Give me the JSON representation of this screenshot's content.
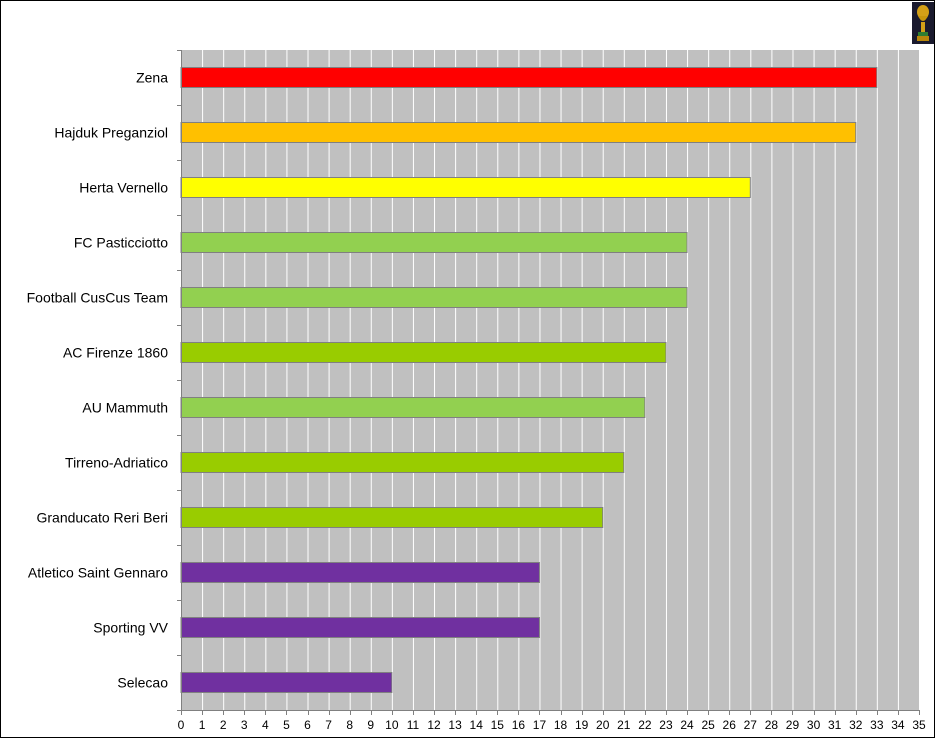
{
  "chart_data": {
    "type": "bar",
    "orientation": "horizontal",
    "title": "",
    "xlabel": "",
    "ylabel": "",
    "xlim": [
      0,
      35
    ],
    "x_ticks": [
      "0",
      "1",
      "2",
      "3",
      "4",
      "5",
      "6",
      "7",
      "8",
      "9",
      "10",
      "11",
      "12",
      "13",
      "14",
      "15",
      "16",
      "17",
      "18",
      "19",
      "20",
      "21",
      "22",
      "23",
      "24",
      "25",
      "26",
      "27",
      "28",
      "29",
      "30",
      "31",
      "32",
      "33",
      "34",
      "35"
    ],
    "grid": "vertical",
    "plot_background": "#c0c0c0",
    "categories": [
      "Zena",
      "Hajduk Preganziol",
      "Herta Vernello",
      "FC Pasticciotto",
      "Football CusCus Team",
      "AC Firenze 1860",
      "AU Mammuth",
      "Tirreno-Adriatico",
      "Granducato Reri Beri",
      "Atletico Saint Gennaro",
      "Sporting VV",
      "Selecao"
    ],
    "values": [
      33,
      32,
      27,
      24,
      24,
      23,
      22,
      21,
      20,
      17,
      17,
      10
    ],
    "colors": [
      "#ff0000",
      "#ffc000",
      "#ffff00",
      "#92d050",
      "#92d050",
      "#99cc00",
      "#92d050",
      "#99cc00",
      "#99cc00",
      "#7030a0",
      "#7030a0",
      "#7030a0"
    ]
  },
  "corner_icon": "trophy-icon"
}
